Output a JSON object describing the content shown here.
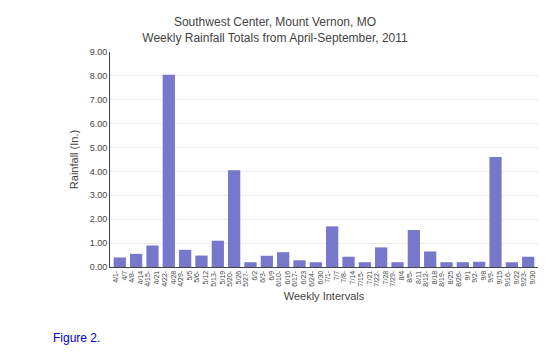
{
  "chart_data": {
    "type": "bar",
    "title": "Southwest Center, Mount Vernon, MO",
    "subtitle": "Weekly Rainfall Totals from April-September, 2011",
    "xlabel": "Weekly Intervals",
    "ylabel": "Rainfall (In.)",
    "annotations": [
      "Figure 2."
    ],
    "categories": [
      "4/1-\n4/7",
      "4/8-\n4/14",
      "4/15-\n4/21",
      "4/22-\n4/28",
      "4/29-\n5/5",
      "5/6-\n5/12",
      "5/13-\n5/19",
      "5/20-\n5/26",
      "5/27-\n6/2",
      "6/3-\n6/9",
      "6/10-\n6/16",
      "6/17-\n6/23",
      "6/24-\n6/30",
      "7/1-\n7/7",
      "7/8-\n7/14",
      "7/15-\n7/21",
      "7/22-\n7/28",
      "7/29-\n8/4",
      "8/5-\n8/11",
      "8/12-\n8/18",
      "8/19-\n8/25",
      "8/26-\n9/1",
      "9/2-\n9/8",
      "9/9-\n9/15",
      "9/16-\n9/22",
      "9/23-\n9/30"
    ],
    "values": [
      0.4,
      0.55,
      0.9,
      8.05,
      0.72,
      0.48,
      1.1,
      4.05,
      0.2,
      0.47,
      0.62,
      0.28,
      0.2,
      1.7,
      0.43,
      0.2,
      0.82,
      0.2,
      1.55,
      0.65,
      0.2,
      0.2,
      0.22,
      4.6,
      0.2,
      0.43
    ],
    "color": "#7777cc",
    "ylim": [
      0,
      9.0
    ],
    "yticks": [
      {
        "value": 0,
        "label": "0.00"
      },
      {
        "value": 1,
        "label": "1.00"
      },
      {
        "value": 2,
        "label": "2.00"
      },
      {
        "value": 3,
        "label": "3.00"
      },
      {
        "value": 4,
        "label": "4.00"
      },
      {
        "value": 5,
        "label": "5.00"
      },
      {
        "value": 6,
        "label": "6.00"
      },
      {
        "value": 7,
        "label": "7.00"
      },
      {
        "value": 8,
        "label": "8.00"
      },
      {
        "value": 9,
        "label": "9.00"
      }
    ],
    "grid": true
  }
}
